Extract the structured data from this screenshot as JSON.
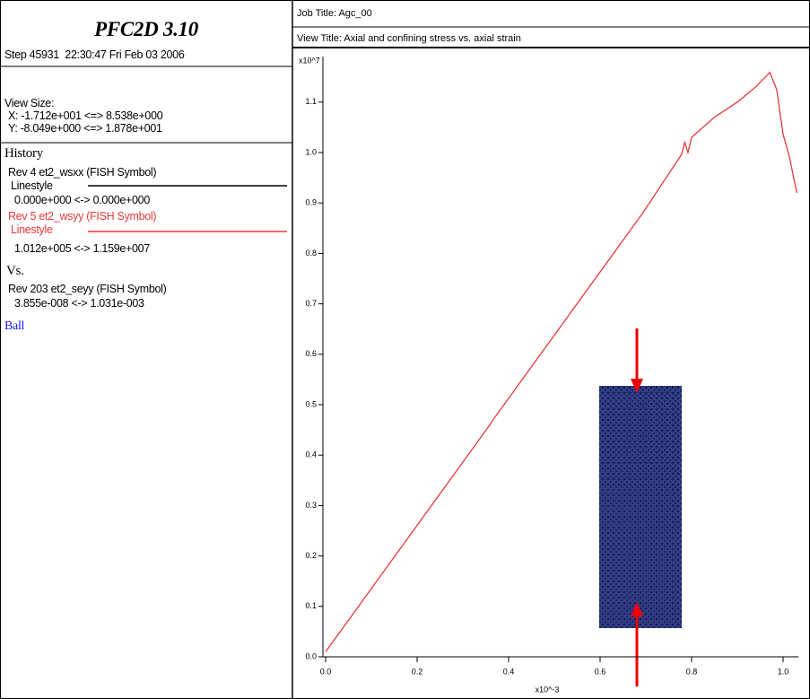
{
  "sidebar": {
    "title": "PFC2D 3.10",
    "step": "Step 45931  22:30:47 Fri Feb 03 2006",
    "view_size": "View Size:",
    "view_x": "X: -1.712e+001 <=> 8.538e+000",
    "view_y": "Y: -8.049e+000 <=> 1.878e+001",
    "history": "History",
    "rev4": "Rev 4 et2_wsxx (FISH Symbol)",
    "rev4_linestyle": "Linestyle",
    "rev4_range": "0.000e+000 <-> 0.000e+000",
    "rev5": "Rev 5 et2_wsyy (FISH Symbol)",
    "rev5_linestyle": "Linestyle",
    "rev5_range": "1.012e+005 <-> 1.159e+007",
    "vs": "Vs.",
    "rev203": "Rev 203 et2_seyy (FISH Symbol)",
    "rev203_range": "3.855e-008 <-> 1.031e-003",
    "ball": "Ball"
  },
  "header": {
    "job_title": "Job Title: Agc_00",
    "view_title": "View Title: Axial and confining stress vs. axial strain"
  },
  "chart_data": {
    "type": "line",
    "y_multiplier": "x10^7",
    "x_multiplier": "x10^-3",
    "color": "#e8393a",
    "x": [
      0,
      0.359,
      0.366,
      0.694,
      0.778,
      0.785,
      0.792,
      0.8,
      0.85,
      0.9,
      0.94,
      0.971,
      0.986,
      1.0,
      1.014,
      1.02,
      1.03
    ],
    "values": [
      0.01,
      0.46,
      0.47,
      0.881,
      0.996,
      1.02,
      1.0,
      1.03,
      1.07,
      1.1,
      1.13,
      1.159,
      1.125,
      1.036,
      0.991,
      0.964,
      0.92
    ],
    "xlim": [
      0,
      1.03
    ],
    "ylim": [
      0,
      1.19
    ],
    "xticks": [
      {
        "value": 0,
        "label": "0.0"
      },
      0.2,
      0.4,
      0.6,
      0.8,
      {
        "value": 1,
        "label": "1.0"
      }
    ],
    "yticks": [
      {
        "value": 0,
        "label": "0.0"
      },
      0.1,
      0.2,
      0.3,
      0.4,
      0.5,
      0.6,
      0.7,
      0.8,
      0.9,
      {
        "value": 1,
        "label": "1.0"
      },
      1.1
    ]
  }
}
